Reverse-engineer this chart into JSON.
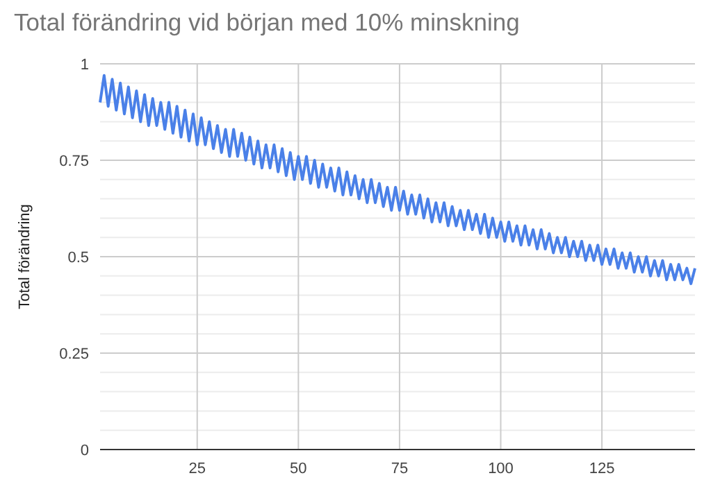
{
  "chart_data": {
    "type": "line",
    "title": "Total förändring vid början med 10% minskning",
    "ylabel": "Total förändring",
    "grid": true,
    "marker": "none",
    "line_style": "solid",
    "xlim": [
      1,
      148
    ],
    "xticks": [
      25,
      50,
      75,
      100,
      125
    ],
    "ylim": [
      0,
      1
    ],
    "yticks": [
      0,
      {
        "value": 0.05,
        "label": null
      },
      {
        "value": 0.1,
        "label": null
      },
      {
        "value": 0.15,
        "label": null
      },
      {
        "value": 0.2,
        "label": null
      },
      0.25,
      {
        "value": 0.3,
        "label": null
      },
      {
        "value": 0.35,
        "label": null
      },
      {
        "value": 0.4,
        "label": null
      },
      {
        "value": 0.45,
        "label": null
      },
      0.5,
      {
        "value": 0.55,
        "label": null
      },
      {
        "value": 0.6,
        "label": null
      },
      {
        "value": 0.65,
        "label": null
      },
      {
        "value": 0.7,
        "label": null
      },
      0.75,
      {
        "value": 0.8,
        "label": null
      },
      {
        "value": 0.85,
        "label": null
      },
      {
        "value": 0.9,
        "label": null
      },
      {
        "value": 0.95,
        "label": null
      },
      1
    ],
    "x": [
      1,
      2,
      3,
      4,
      5,
      6,
      7,
      8,
      9,
      10,
      11,
      12,
      13,
      14,
      15,
      16,
      17,
      18,
      19,
      20,
      21,
      22,
      23,
      24,
      25,
      26,
      27,
      28,
      29,
      30,
      31,
      32,
      33,
      34,
      35,
      36,
      37,
      38,
      39,
      40,
      41,
      42,
      43,
      44,
      45,
      46,
      47,
      48,
      49,
      50,
      51,
      52,
      53,
      54,
      55,
      56,
      57,
      58,
      59,
      60,
      61,
      62,
      63,
      64,
      65,
      66,
      67,
      68,
      69,
      70,
      71,
      72,
      73,
      74,
      75,
      76,
      77,
      78,
      79,
      80,
      81,
      82,
      83,
      84,
      85,
      86,
      87,
      88,
      89,
      90,
      91,
      92,
      93,
      94,
      95,
      96,
      97,
      98,
      99,
      100,
      101,
      102,
      103,
      104,
      105,
      106,
      107,
      108,
      109,
      110,
      111,
      112,
      113,
      114,
      115,
      116,
      117,
      118,
      119,
      120,
      121,
      122,
      123,
      124,
      125,
      126,
      127,
      128,
      129,
      130,
      131,
      132,
      133,
      134,
      135,
      136,
      137,
      138,
      139,
      140,
      141,
      142,
      143,
      144,
      145,
      146,
      147,
      148
    ],
    "series": [
      {
        "color": "#4a80e8",
        "values": [
          0.9,
          0.97,
          0.89,
          0.96,
          0.88,
          0.95,
          0.87,
          0.94,
          0.86,
          0.93,
          0.85,
          0.92,
          0.84,
          0.91,
          0.84,
          0.9,
          0.83,
          0.9,
          0.82,
          0.89,
          0.81,
          0.88,
          0.8,
          0.87,
          0.79,
          0.86,
          0.79,
          0.85,
          0.78,
          0.84,
          0.77,
          0.83,
          0.76,
          0.83,
          0.76,
          0.82,
          0.75,
          0.81,
          0.74,
          0.8,
          0.73,
          0.79,
          0.73,
          0.79,
          0.72,
          0.78,
          0.71,
          0.77,
          0.7,
          0.76,
          0.7,
          0.76,
          0.69,
          0.75,
          0.68,
          0.74,
          0.68,
          0.73,
          0.67,
          0.73,
          0.66,
          0.72,
          0.66,
          0.71,
          0.65,
          0.7,
          0.64,
          0.7,
          0.64,
          0.69,
          0.63,
          0.68,
          0.62,
          0.68,
          0.62,
          0.67,
          0.61,
          0.66,
          0.61,
          0.66,
          0.6,
          0.65,
          0.59,
          0.64,
          0.59,
          0.64,
          0.58,
          0.63,
          0.58,
          0.62,
          0.57,
          0.62,
          0.57,
          0.61,
          0.56,
          0.61,
          0.55,
          0.6,
          0.55,
          0.59,
          0.54,
          0.59,
          0.54,
          0.58,
          0.53,
          0.58,
          0.53,
          0.57,
          0.52,
          0.57,
          0.52,
          0.56,
          0.51,
          0.55,
          0.51,
          0.55,
          0.5,
          0.54,
          0.5,
          0.54,
          0.49,
          0.53,
          0.49,
          0.53,
          0.48,
          0.52,
          0.48,
          0.52,
          0.47,
          0.51,
          0.47,
          0.51,
          0.46,
          0.5,
          0.46,
          0.5,
          0.45,
          0.49,
          0.45,
          0.49,
          0.44,
          0.48,
          0.44,
          0.48,
          0.44,
          0.47,
          0.43,
          0.47
        ]
      }
    ]
  }
}
